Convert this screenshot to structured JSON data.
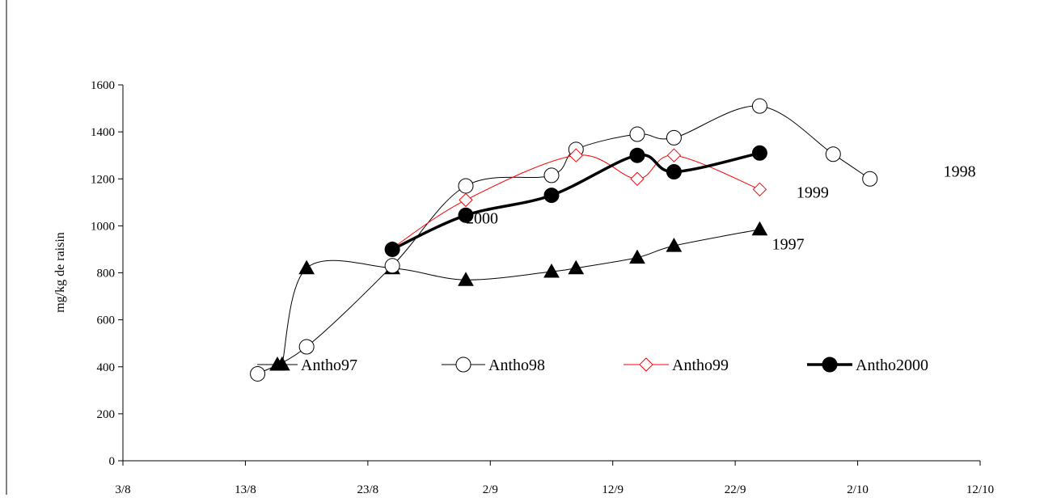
{
  "chart_data": {
    "type": "line",
    "title": "",
    "xlabel": "",
    "ylabel": "mg/kg de raisin",
    "xlim": [
      "2000-08-03",
      "2000-10-12"
    ],
    "ylim": [
      0,
      1600
    ],
    "x_ticks": [
      "3/8",
      "13/8",
      "23/8",
      "2/9",
      "12/9",
      "22/9",
      "2/10",
      "12/10"
    ],
    "y_ticks": [
      "0",
      "200",
      "400",
      "600",
      "800",
      "1000",
      "1200",
      "1400",
      "1600"
    ],
    "grid": false,
    "legend_position": "center",
    "series": [
      {
        "name": "Antho97",
        "color": "#000000",
        "marker": "filled-triangle",
        "x": [
          "2000-08-16",
          "2000-08-18",
          "2000-08-25",
          "2000-08-31",
          "2000-09-07",
          "2000-09-09",
          "2000-09-14",
          "2000-09-17",
          "2000-09-24"
        ],
        "y": [
          410,
          820,
          820,
          770,
          805,
          820,
          865,
          915,
          985
        ]
      },
      {
        "name": "Antho98",
        "color": "#000000",
        "marker": "open-circle",
        "x": [
          "2000-08-14",
          "2000-08-18",
          "2000-08-25",
          "2000-08-31",
          "2000-09-07",
          "2000-09-09",
          "2000-09-14",
          "2000-09-17",
          "2000-09-24",
          "2000-09-30",
          "2000-10-03"
        ],
        "y": [
          370,
          485,
          830,
          1170,
          1215,
          1325,
          1390,
          1375,
          1510,
          1305,
          1200
        ]
      },
      {
        "name": "Antho99",
        "color": "#ff0000",
        "marker": "open-diamond",
        "x": [
          "2000-08-25",
          "2000-08-31",
          "2000-09-09",
          "2000-09-14",
          "2000-09-17",
          "2000-09-24"
        ],
        "y": [
          905,
          1110,
          1300,
          1200,
          1300,
          1155
        ]
      },
      {
        "name": "Antho2000",
        "color": "#000000",
        "marker": "filled-circle",
        "x": [
          "2000-08-25",
          "2000-08-31",
          "2000-09-07",
          "2000-09-14",
          "2000-09-17",
          "2000-09-24"
        ],
        "y": [
          900,
          1045,
          1130,
          1300,
          1230,
          1310
        ]
      }
    ],
    "annotations": [
      {
        "text": "1998",
        "x": "2000-10-09",
        "y": 1210
      },
      {
        "text": "1999",
        "x": "2000-09-27",
        "y": 1120
      },
      {
        "text": "2000",
        "x": "2000-08-31",
        "y": 1010
      },
      {
        "text": "1997",
        "x": "2000-09-25",
        "y": 900
      }
    ]
  }
}
